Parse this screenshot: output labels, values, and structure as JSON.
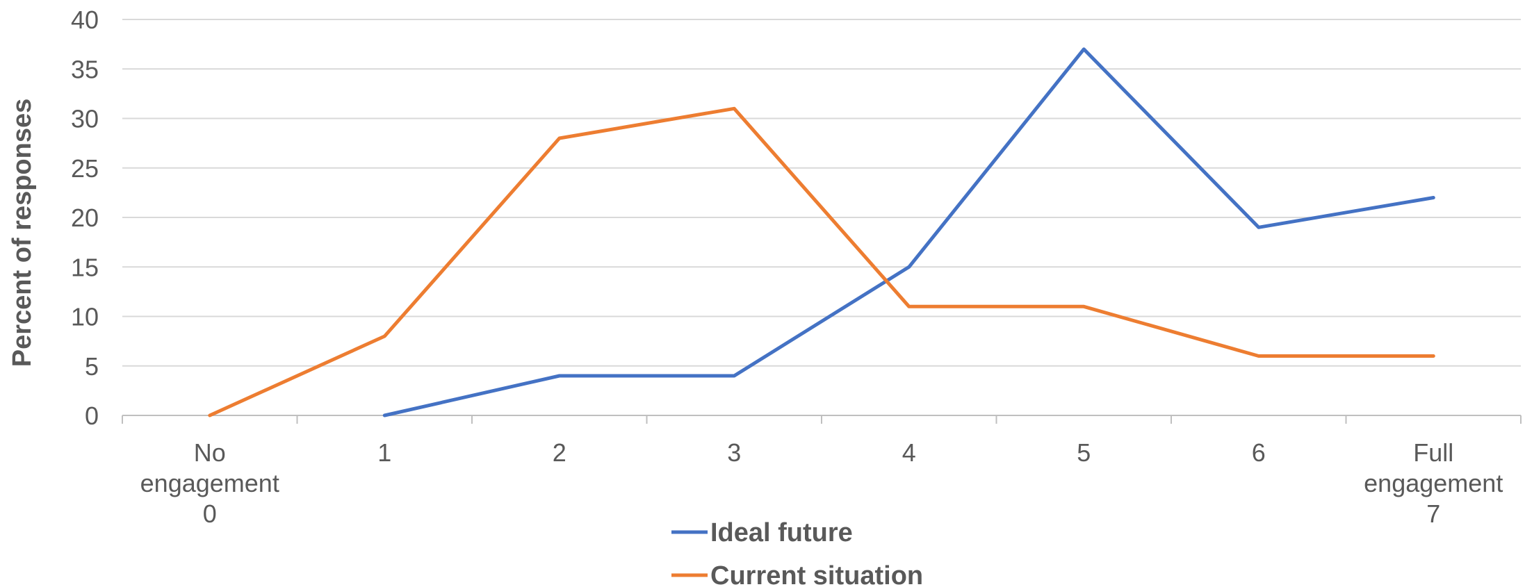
{
  "chart_data": {
    "type": "line",
    "categories": [
      [
        "No",
        "engagement",
        "0"
      ],
      [
        "1"
      ],
      [
        "2"
      ],
      [
        "3"
      ],
      [
        "4"
      ],
      [
        "5"
      ],
      [
        "6"
      ],
      [
        "Full",
        "engagement",
        "7"
      ]
    ],
    "ylabel": "Percent of responses",
    "xlabel": "",
    "ylim": [
      0,
      40
    ],
    "yticks": [
      0,
      5,
      10,
      15,
      20,
      25,
      30,
      35,
      40
    ],
    "grid": true,
    "legend_position": "bottom",
    "series": [
      {
        "name": "Ideal future",
        "color": "#4472C4",
        "values": [
          null,
          0,
          4,
          4,
          15,
          37,
          19,
          22
        ]
      },
      {
        "name": "Current situation",
        "color": "#ED7D31",
        "values": [
          0,
          8,
          28,
          31,
          11,
          11,
          6,
          6
        ]
      }
    ]
  }
}
